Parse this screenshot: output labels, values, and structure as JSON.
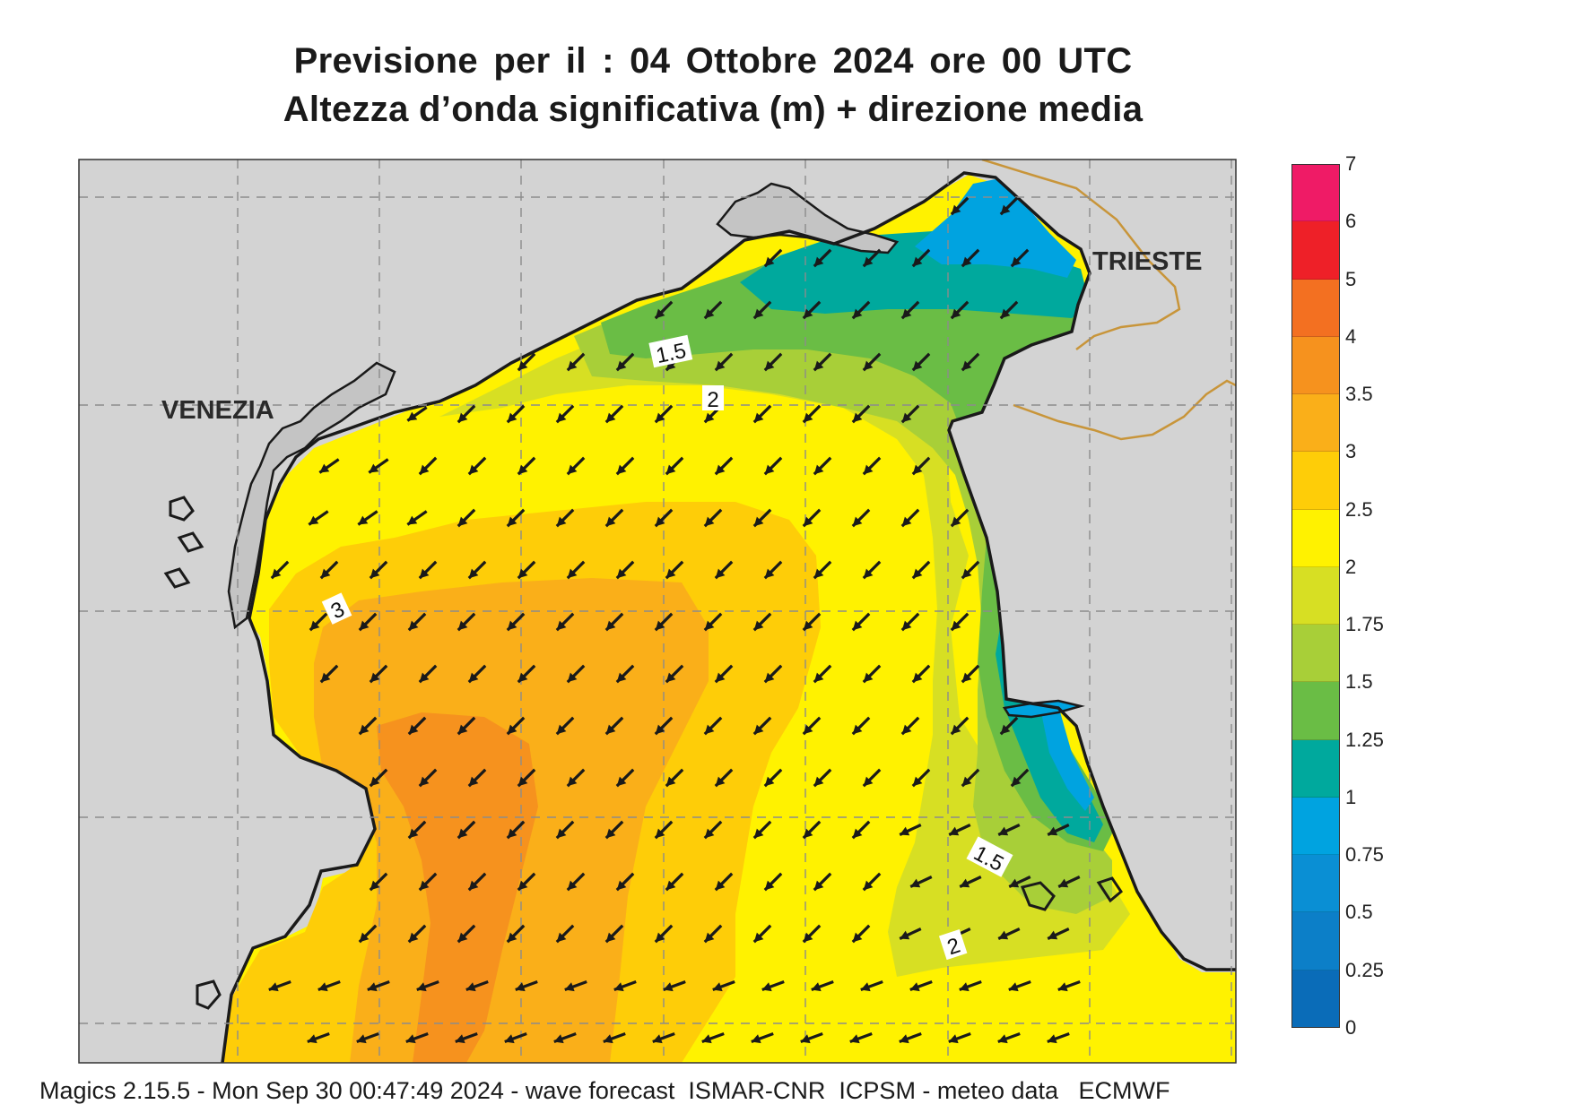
{
  "title": {
    "line1": "Previsione per il  :  04  Ottobre  2024   ore 00 UTC",
    "line2": "Altezza d’onda significativa (m) + direzione media"
  },
  "map": {
    "cities": [
      "VENEZIA",
      "TRIESTE"
    ],
    "contour_labels": [
      "1.5",
      "2",
      "3",
      "1.5",
      "2"
    ],
    "land_color": "#d3d3d3",
    "coast_color": "#1a1a1a",
    "border_color": "#c8953a",
    "arrow_color": "#1a1a1a"
  },
  "colorbar": {
    "labels": [
      "7",
      "6",
      "5",
      "4",
      "3.5",
      "3",
      "2.5",
      "2",
      "1.75",
      "1.5",
      "1.25",
      "1",
      "0.75",
      "0.5",
      "0.25",
      "0"
    ],
    "colors": [
      "#ef1b66",
      "#ee2028",
      "#f37021",
      "#f6921e",
      "#faaf19",
      "#fecd08",
      "#fff200",
      "#d7df23",
      "#a8cf38",
      "#6abd45",
      "#00a99d",
      "#00a3e0",
      "#0a8fd4",
      "#0c7fc8",
      "#0a6cb8"
    ]
  },
  "chart_data": {
    "type": "heatmap",
    "title": "Previsione per il  :  04  Ottobre  2024   ore 00 UTC",
    "subtitle": "Altezza d’onda significativa (m) + direzione media",
    "variable": "significant wave height (m)",
    "scale_levels": [
      0,
      0.25,
      0.5,
      0.75,
      1,
      1.25,
      1.5,
      1.75,
      2,
      2.5,
      3,
      3.5,
      4,
      5,
      6,
      7
    ],
    "contour_levels_labeled": [
      1.5,
      2,
      3
    ],
    "mean_direction": "waves propagate toward south-west",
    "places": [
      "VENEZIA",
      "TRIESTE"
    ]
  },
  "footer": "Magics 2.15.5 - Mon Sep 30 00:47:49 2024 - wave forecast  ISMAR-CNR  ICPSM - meteo data   ECMWF"
}
